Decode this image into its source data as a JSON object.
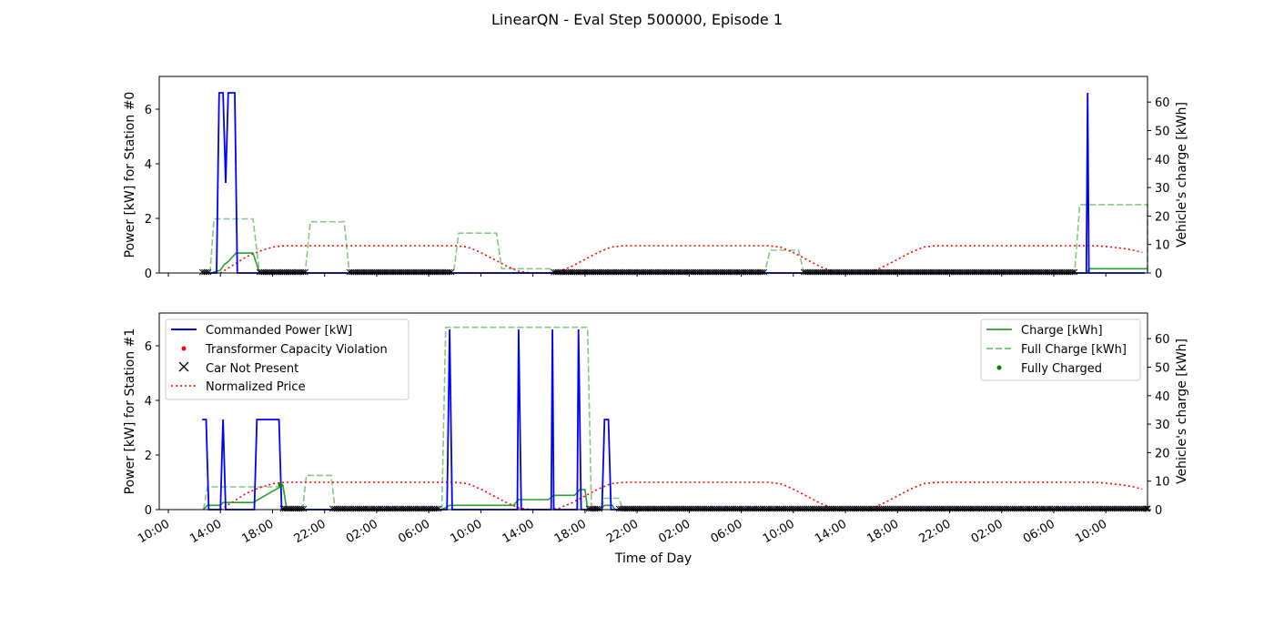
{
  "figure": {
    "title": "LinearQN - Eval Step 500000, Episode 1",
    "xlabel": "Time of Day",
    "x_tick_labels": [
      "10:00",
      "14:00",
      "18:00",
      "22:00",
      "02:00",
      "06:00",
      "10:00",
      "14:00",
      "18:00",
      "22:00",
      "02:00",
      "06:00",
      "10:00",
      "14:00",
      "18:00",
      "22:00",
      "02:00",
      "06:00",
      "10:00"
    ]
  },
  "colors": {
    "power": "#0000ff",
    "charge": "#2ca02c",
    "full_charge": "#74c476",
    "price": "#ff0000",
    "not_present": "#000000",
    "fully_charged": "#008000",
    "violation": "#ff0000"
  },
  "legend_left": [
    {
      "label": "Commanded Power [kW]",
      "icon": "blue-line"
    },
    {
      "label": "Transformer Capacity Violation",
      "icon": "red-dot"
    },
    {
      "label": "Car Not Present",
      "icon": "black-x"
    },
    {
      "label": "Normalized Price",
      "icon": "red-dotted-line"
    }
  ],
  "legend_right": [
    {
      "label": "Charge [kWh]",
      "icon": "green-line"
    },
    {
      "label": "Full Charge [kWh]",
      "icon": "green-dashed-line"
    },
    {
      "label": "Fully Charged",
      "icon": "green-dot"
    }
  ],
  "chart_data": [
    {
      "type": "line",
      "station": 0,
      "ylabel_left": "Power [kW] for Station #0",
      "ylabel_right": "Vehicle's charge [kWh]",
      "y_left_ticks": [
        "0",
        "2",
        "4",
        "6"
      ],
      "y_right_ticks": [
        "0",
        "10",
        "20",
        "30",
        "40",
        "50",
        "60"
      ],
      "ylim_left": [
        0,
        7.2
      ],
      "ylim_right": [
        0,
        69
      ],
      "xlim_hours": [
        -0.7,
        75.2
      ],
      "grid": false,
      "series": [
        {
          "name": "Commanded Power [kW]",
          "axis": "left",
          "style": "solid",
          "color": "#0000ff",
          "points": [
            [
              3,
              0
            ],
            [
              3.7,
              0
            ],
            [
              3.9,
              6.6
            ],
            [
              4.2,
              6.6
            ],
            [
              4.4,
              3.3
            ],
            [
              4.6,
              6.6
            ],
            [
              5.1,
              6.6
            ],
            [
              5.3,
              0
            ],
            [
              70.5,
              0
            ],
            [
              70.6,
              6.6
            ],
            [
              70.7,
              0
            ],
            [
              75,
              0
            ]
          ]
        },
        {
          "name": "Charge [kWh]",
          "axis": "right",
          "style": "solid",
          "color": "#2ca02c",
          "points": [
            [
              3.3,
              0
            ],
            [
              4,
              1
            ],
            [
              4.3,
              3
            ],
            [
              4.6,
              4
            ],
            [
              5.2,
              7
            ],
            [
              6.5,
              7
            ],
            [
              7.0,
              0
            ],
            [
              9.0,
              0
            ],
            [
              70.6,
              0
            ],
            [
              70.7,
              1.5
            ],
            [
              77,
              1.5
            ]
          ]
        },
        {
          "name": "Full Charge [kWh]",
          "axis": "right",
          "style": "dashed",
          "color": "#74c476",
          "points": [
            [
              3.2,
              0
            ],
            [
              3.5,
              19
            ],
            [
              6.5,
              19
            ],
            [
              7.0,
              0
            ],
            [
              10.5,
              0
            ],
            [
              10.9,
              18
            ],
            [
              13.5,
              18
            ],
            [
              13.9,
              0
            ],
            [
              21.9,
              0
            ],
            [
              22.3,
              14
            ],
            [
              25.2,
              14
            ],
            [
              25.6,
              1.5
            ],
            [
              29.3,
              1.5
            ],
            [
              29.6,
              0
            ],
            [
              45.8,
              0
            ],
            [
              46.2,
              8
            ],
            [
              48.4,
              8
            ],
            [
              48.8,
              0
            ],
            [
              69.6,
              0
            ],
            [
              70.0,
              24
            ],
            [
              77.5,
              24
            ],
            [
              77.8,
              0
            ]
          ]
        },
        {
          "name": "Normalized Price",
          "axis": "left",
          "style": "dotted",
          "color": "#ff0000",
          "points": [
            [
              4,
              0
            ],
            [
              5,
              0.3
            ],
            [
              6,
              0.6
            ],
            [
              7,
              0.8
            ],
            [
              8,
              0.95
            ],
            [
              9,
              1
            ],
            [
              22,
              1
            ],
            [
              23,
              0.95
            ],
            [
              24,
              0.75
            ],
            [
              25,
              0.5
            ],
            [
              26,
              0.25
            ],
            [
              27,
              0.05
            ],
            [
              28,
              0
            ],
            [
              29,
              0
            ],
            [
              30,
              0.05
            ],
            [
              31,
              0.25
            ],
            [
              32,
              0.5
            ],
            [
              33,
              0.75
            ],
            [
              34,
              0.95
            ],
            [
              35,
              1
            ],
            [
              46,
              1
            ],
            [
              47,
              0.95
            ],
            [
              48,
              0.75
            ],
            [
              49,
              0.5
            ],
            [
              50,
              0.25
            ],
            [
              51,
              0.05
            ],
            [
              52,
              0
            ],
            [
              53,
              0
            ],
            [
              54,
              0.05
            ],
            [
              55,
              0.25
            ],
            [
              56,
              0.5
            ],
            [
              57,
              0.75
            ],
            [
              58,
              0.95
            ],
            [
              59,
              1
            ],
            [
              70,
              1
            ],
            [
              71,
              1
            ],
            [
              72,
              0.97
            ],
            [
              73,
              0.92
            ],
            [
              74,
              0.85
            ],
            [
              74.8,
              0.75
            ]
          ]
        }
      ],
      "not_present_ranges": [
        [
          2.6,
          3.2
        ],
        [
          7.0,
          10.6
        ],
        [
          13.9,
          21.8
        ],
        [
          29.6,
          45.8
        ],
        [
          48.8,
          69.6
        ],
        [
          77.6,
          78.0
        ]
      ],
      "fully_charged_points": []
    },
    {
      "type": "line",
      "station": 1,
      "ylabel_left": "Power [kW] for Station #1",
      "ylabel_right": "Vehicle's charge [kWh]",
      "y_left_ticks": [
        "0",
        "2",
        "4",
        "6"
      ],
      "y_right_ticks": [
        "0",
        "10",
        "20",
        "30",
        "40",
        "50",
        "60"
      ],
      "ylim_left": [
        0,
        7.2
      ],
      "ylim_right": [
        0,
        69
      ],
      "xlim_hours": [
        -0.7,
        75.2
      ],
      "grid": false,
      "series": [
        {
          "name": "Commanded Power [kW]",
          "axis": "left",
          "style": "solid",
          "color": "#0000ff",
          "points": [
            [
              2.6,
              3.3
            ],
            [
              2.9,
              3.3
            ],
            [
              3.1,
              0
            ],
            [
              4.0,
              0
            ],
            [
              4.2,
              3.3
            ],
            [
              4.4,
              0
            ],
            [
              6.6,
              0
            ],
            [
              6.8,
              3.3
            ],
            [
              8.5,
              3.3
            ],
            [
              8.7,
              0
            ],
            [
              21.4,
              0
            ],
            [
              21.6,
              6.6
            ],
            [
              21.8,
              0
            ],
            [
              26.8,
              0
            ],
            [
              26.9,
              6.6
            ],
            [
              27.1,
              0
            ],
            [
              29.4,
              0
            ],
            [
              29.5,
              6.6
            ],
            [
              29.6,
              0
            ],
            [
              31.4,
              0
            ],
            [
              31.5,
              6.6
            ],
            [
              31.7,
              0
            ],
            [
              33.3,
              0
            ],
            [
              33.5,
              3.3
            ],
            [
              33.8,
              3.3
            ],
            [
              34.0,
              0
            ],
            [
              75,
              0
            ]
          ]
        },
        {
          "name": "Charge [kWh]",
          "axis": "right",
          "style": "solid",
          "color": "#2ca02c",
          "points": [
            [
              2.7,
              0
            ],
            [
              3.0,
              1.5
            ],
            [
              4,
              1.5
            ],
            [
              4.2,
              2.5
            ],
            [
              6.5,
              2.5
            ],
            [
              8.8,
              8.5
            ],
            [
              9.1,
              0
            ],
            [
              21.0,
              0
            ],
            [
              21.6,
              1.5
            ],
            [
              26.5,
              1.5
            ],
            [
              26.9,
              3.5
            ],
            [
              29.2,
              3.5
            ],
            [
              29.6,
              5
            ],
            [
              31.2,
              5
            ],
            [
              31.6,
              7
            ],
            [
              32,
              7
            ],
            [
              32.2,
              0
            ],
            [
              33.2,
              0
            ],
            [
              33.5,
              1.5
            ],
            [
              34.1,
              1.5
            ],
            [
              34.3,
              0
            ],
            [
              77,
              0
            ]
          ]
        },
        {
          "name": "Full Charge [kWh]",
          "axis": "right",
          "style": "dashed",
          "color": "#74c476",
          "points": [
            [
              2.7,
              0
            ],
            [
              3.0,
              8
            ],
            [
              8.8,
              8
            ],
            [
              9.1,
              0
            ],
            [
              10.3,
              0
            ],
            [
              10.6,
              12
            ],
            [
              12.5,
              12
            ],
            [
              12.8,
              0
            ],
            [
              21.0,
              0
            ],
            [
              21.3,
              64
            ],
            [
              32.2,
              64
            ],
            [
              32.5,
              0
            ],
            [
              33.2,
              0
            ],
            [
              33.5,
              4
            ],
            [
              34.6,
              4
            ],
            [
              34.9,
              0
            ],
            [
              77,
              0
            ]
          ]
        },
        {
          "name": "Normalized Price",
          "axis": "left",
          "style": "dotted",
          "color": "#ff0000",
          "points": [
            [
              4,
              0
            ],
            [
              5,
              0.3
            ],
            [
              6,
              0.6
            ],
            [
              7,
              0.8
            ],
            [
              8,
              0.95
            ],
            [
              9,
              1
            ],
            [
              22,
              1
            ],
            [
              23,
              0.95
            ],
            [
              24,
              0.75
            ],
            [
              25,
              0.5
            ],
            [
              26,
              0.25
            ],
            [
              27,
              0.05
            ],
            [
              28,
              0
            ],
            [
              29,
              0
            ],
            [
              30,
              0.05
            ],
            [
              31,
              0.25
            ],
            [
              32,
              0.5
            ],
            [
              33,
              0.75
            ],
            [
              34,
              0.95
            ],
            [
              35,
              1
            ],
            [
              46,
              1
            ],
            [
              47,
              0.95
            ],
            [
              48,
              0.75
            ],
            [
              49,
              0.5
            ],
            [
              50,
              0.25
            ],
            [
              51,
              0.05
            ],
            [
              52,
              0
            ],
            [
              53,
              0
            ],
            [
              54,
              0.05
            ],
            [
              55,
              0.25
            ],
            [
              56,
              0.5
            ],
            [
              57,
              0.75
            ],
            [
              58,
              0.95
            ],
            [
              59,
              1
            ],
            [
              70,
              1
            ],
            [
              71,
              1
            ],
            [
              72,
              0.97
            ],
            [
              73,
              0.92
            ],
            [
              74,
              0.85
            ],
            [
              74.8,
              0.75
            ]
          ]
        }
      ],
      "not_present_ranges": [
        [
          8.8,
          10.4
        ],
        [
          12.6,
          20.9
        ],
        [
          32.3,
          33.2
        ],
        [
          34.6,
          77.8
        ]
      ],
      "fully_charged_points": [
        [
          8.6,
          8.7
        ]
      ]
    }
  ]
}
